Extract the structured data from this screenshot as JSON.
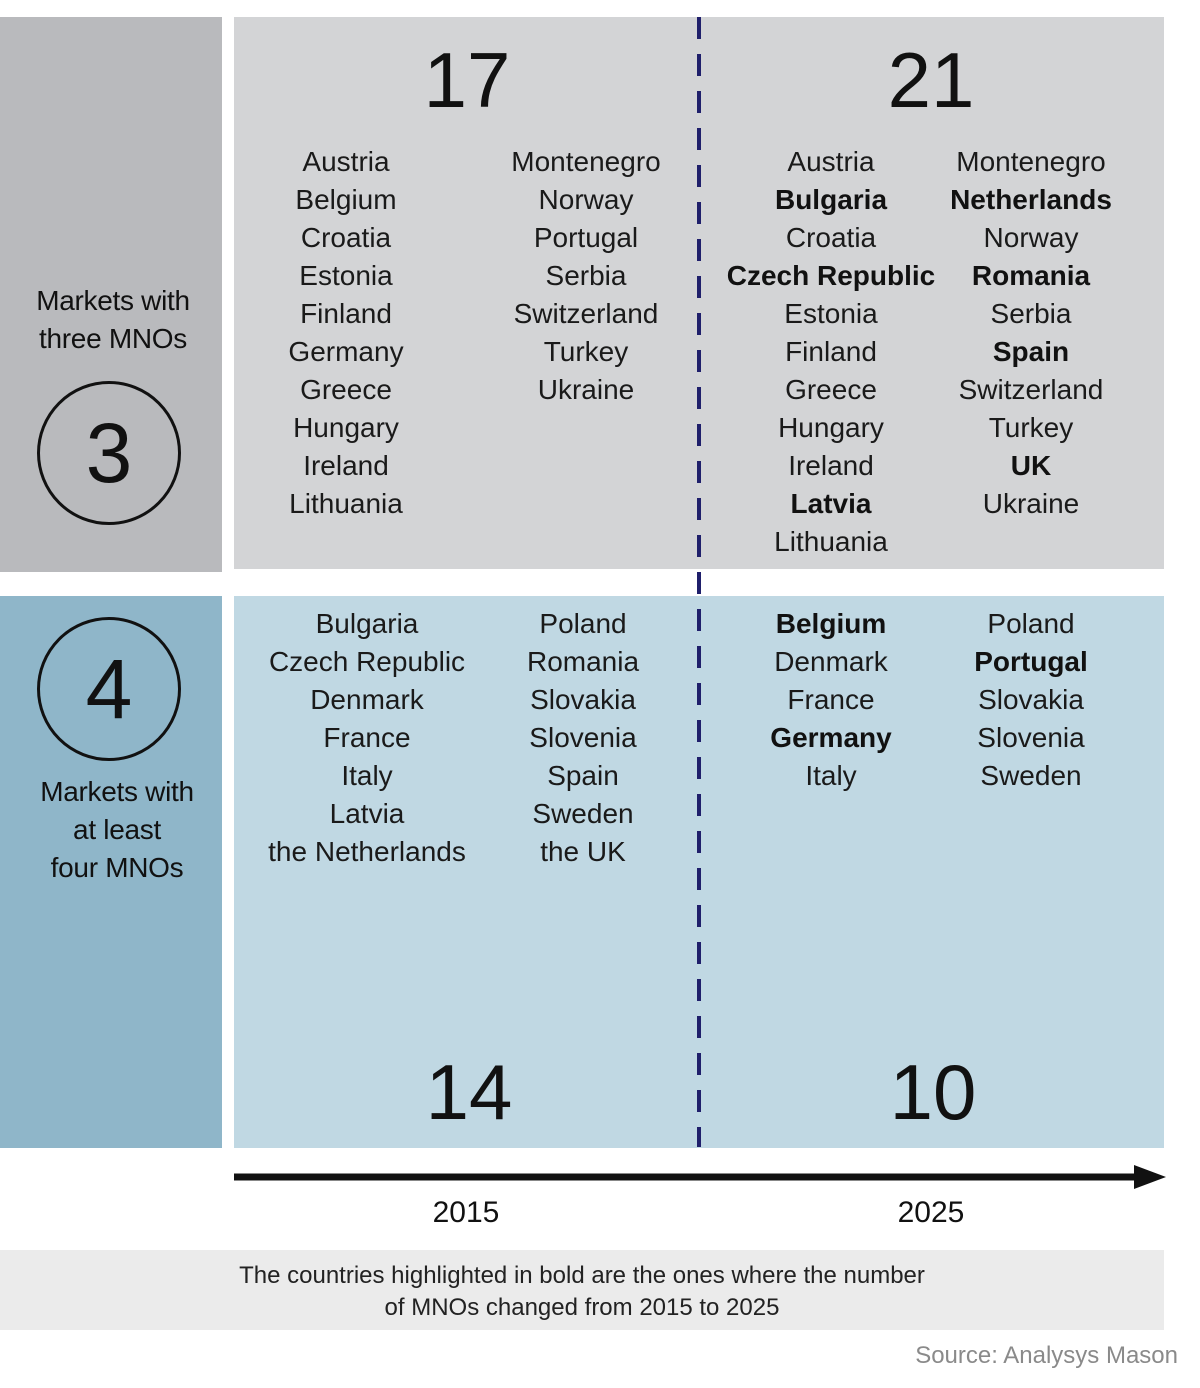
{
  "three_mnos": {
    "label_line1": "Markets with",
    "label_line2": "three MNOs",
    "badge": "3",
    "count_2015": "17",
    "count_2025": "21",
    "col_2015_a": [
      {
        "name": "Austria",
        "bold": false
      },
      {
        "name": "Belgium",
        "bold": false
      },
      {
        "name": "Croatia",
        "bold": false
      },
      {
        "name": "Estonia",
        "bold": false
      },
      {
        "name": "Finland",
        "bold": false
      },
      {
        "name": "Germany",
        "bold": false
      },
      {
        "name": "Greece",
        "bold": false
      },
      {
        "name": "Hungary",
        "bold": false
      },
      {
        "name": "Ireland",
        "bold": false
      },
      {
        "name": "Lithuania",
        "bold": false
      }
    ],
    "col_2015_b": [
      {
        "name": "Montenegro",
        "bold": false
      },
      {
        "name": "Norway",
        "bold": false
      },
      {
        "name": "Portugal",
        "bold": false
      },
      {
        "name": "Serbia",
        "bold": false
      },
      {
        "name": "Switzerland",
        "bold": false
      },
      {
        "name": "Turkey",
        "bold": false
      },
      {
        "name": "Ukraine",
        "bold": false
      }
    ],
    "col_2025_a": [
      {
        "name": "Austria",
        "bold": false
      },
      {
        "name": "Bulgaria",
        "bold": true
      },
      {
        "name": "Croatia",
        "bold": false
      },
      {
        "name": "Czech Republic",
        "bold": true
      },
      {
        "name": "Estonia",
        "bold": false
      },
      {
        "name": "Finland",
        "bold": false
      },
      {
        "name": "Greece",
        "bold": false
      },
      {
        "name": "Hungary",
        "bold": false
      },
      {
        "name": "Ireland",
        "bold": false
      },
      {
        "name": "Latvia",
        "bold": true
      },
      {
        "name": "Lithuania",
        "bold": false
      }
    ],
    "col_2025_b": [
      {
        "name": "Montenegro",
        "bold": false
      },
      {
        "name": "Netherlands",
        "bold": true
      },
      {
        "name": "Norway",
        "bold": false
      },
      {
        "name": "Romania",
        "bold": true
      },
      {
        "name": "Serbia",
        "bold": false
      },
      {
        "name": "Spain",
        "bold": true
      },
      {
        "name": "Switzerland",
        "bold": false
      },
      {
        "name": "Turkey",
        "bold": false
      },
      {
        "name": "UK",
        "bold": true
      },
      {
        "name": "Ukraine",
        "bold": false
      }
    ]
  },
  "four_mnos": {
    "label_line1": "Markets with",
    "label_line2": "at least",
    "label_line3": "four MNOs",
    "badge": "4",
    "count_2015": "14",
    "count_2025": "10",
    "col_2015_a": [
      {
        "name": "Bulgaria",
        "bold": false
      },
      {
        "name": "Czech Republic",
        "bold": false
      },
      {
        "name": "Denmark",
        "bold": false
      },
      {
        "name": "France",
        "bold": false
      },
      {
        "name": "Italy",
        "bold": false
      },
      {
        "name": "Latvia",
        "bold": false
      },
      {
        "name": "the Netherlands",
        "bold": false
      }
    ],
    "col_2015_b": [
      {
        "name": "Poland",
        "bold": false
      },
      {
        "name": "Romania",
        "bold": false
      },
      {
        "name": "Slovakia",
        "bold": false
      },
      {
        "name": "Slovenia",
        "bold": false
      },
      {
        "name": "Spain",
        "bold": false
      },
      {
        "name": "Sweden",
        "bold": false
      },
      {
        "name": "the UK",
        "bold": false
      }
    ],
    "col_2025_a": [
      {
        "name": "Belgium",
        "bold": true
      },
      {
        "name": "Denmark",
        "bold": false
      },
      {
        "name": "France",
        "bold": false
      },
      {
        "name": "Germany",
        "bold": true
      },
      {
        "name": "Italy",
        "bold": false
      }
    ],
    "col_2025_b": [
      {
        "name": "Poland",
        "bold": false
      },
      {
        "name": "Portugal",
        "bold": true
      },
      {
        "name": "Slovakia",
        "bold": false
      },
      {
        "name": "Slovenia",
        "bold": false
      },
      {
        "name": "Sweden",
        "bold": false
      }
    ]
  },
  "timeline": {
    "year_left": "2015",
    "year_right": "2025"
  },
  "note": {
    "line1": "The countries highlighted in bold are the ones where the number",
    "line2": "of MNOs changed from 2015 to 2025"
  },
  "source": "Source: Analysys Mason",
  "colors": {
    "three_side": "#b9babd",
    "three_panel": "#d3d4d6",
    "four_side": "#8fb6c9",
    "four_panel": "#c0d8e3",
    "divider": "#1f1f6b"
  }
}
